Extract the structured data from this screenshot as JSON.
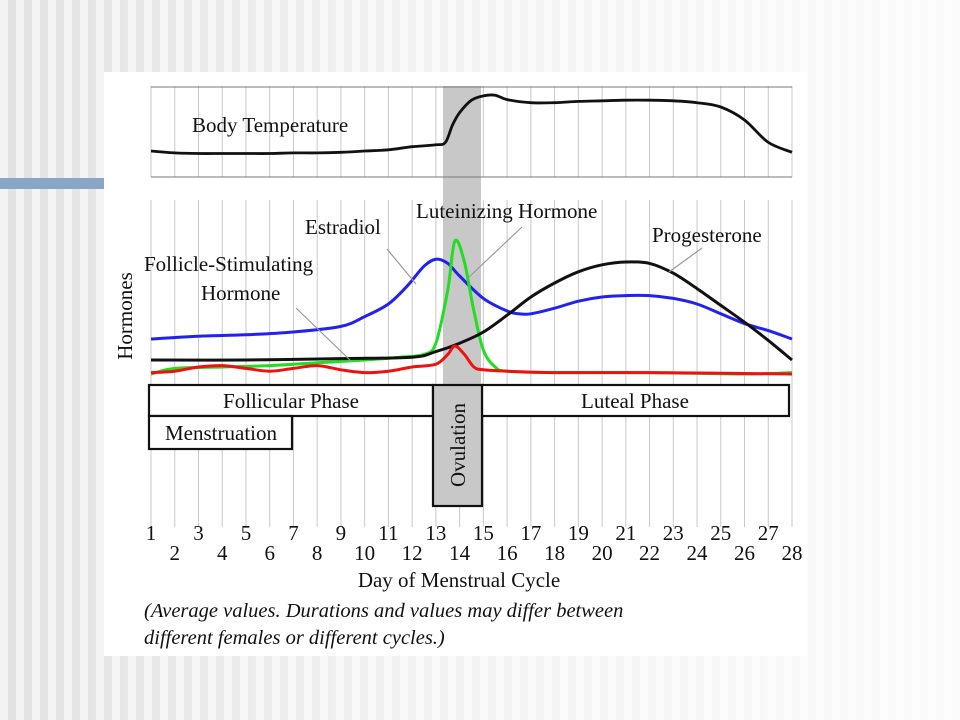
{
  "slide": {
    "accent_color": "#8aa6c6"
  },
  "chart_data": {
    "type": "line",
    "xlabel": "Day of Menstrual Cycle",
    "ylabel": "Hormones",
    "xlim": [
      1,
      28
    ],
    "x_ticks": [
      "1",
      "2",
      "3",
      "4",
      "5",
      "6",
      "7",
      "8",
      "9",
      "10",
      "11",
      "12",
      "13",
      "14",
      "15",
      "16",
      "17",
      "18",
      "19",
      "20",
      "21",
      "22",
      "23",
      "24",
      "25",
      "26",
      "27",
      "28"
    ],
    "grid": "vertical",
    "temperature_panel": {
      "name": "Body Temperature",
      "color": "#111111",
      "points": [
        [
          1,
          0.08
        ],
        [
          2,
          0.05
        ],
        [
          3,
          0.04
        ],
        [
          4,
          0.04
        ],
        [
          5,
          0.04
        ],
        [
          6,
          0.04
        ],
        [
          7,
          0.05
        ],
        [
          8,
          0.05
        ],
        [
          9,
          0.06
        ],
        [
          10,
          0.08
        ],
        [
          11,
          0.1
        ],
        [
          12,
          0.15
        ],
        [
          13,
          0.18
        ],
        [
          13.4,
          0.22
        ],
        [
          13.7,
          0.5
        ],
        [
          14,
          0.7
        ],
        [
          14.5,
          0.9
        ],
        [
          15,
          0.97
        ],
        [
          15.5,
          0.98
        ],
        [
          16,
          0.91
        ],
        [
          17,
          0.86
        ],
        [
          18,
          0.86
        ],
        [
          19,
          0.88
        ],
        [
          20,
          0.89
        ],
        [
          21,
          0.9
        ],
        [
          22,
          0.9
        ],
        [
          23,
          0.89
        ],
        [
          24,
          0.86
        ],
        [
          25,
          0.79
        ],
        [
          26,
          0.58
        ],
        [
          27,
          0.22
        ],
        [
          28,
          0.06
        ]
      ]
    },
    "series": [
      {
        "name": "Estradiol",
        "color": "#2222ee",
        "points": [
          [
            1,
            0.25
          ],
          [
            3,
            0.27
          ],
          [
            5,
            0.28
          ],
          [
            7,
            0.3
          ],
          [
            9,
            0.34
          ],
          [
            10,
            0.41
          ],
          [
            11,
            0.5
          ],
          [
            11.8,
            0.63
          ],
          [
            12.5,
            0.77
          ],
          [
            13,
            0.82
          ],
          [
            13.5,
            0.79
          ],
          [
            14,
            0.7
          ],
          [
            15,
            0.54
          ],
          [
            16,
            0.45
          ],
          [
            16.5,
            0.43
          ],
          [
            17,
            0.43
          ],
          [
            18,
            0.47
          ],
          [
            19,
            0.52
          ],
          [
            20,
            0.55
          ],
          [
            21,
            0.56
          ],
          [
            22,
            0.56
          ],
          [
            23,
            0.54
          ],
          [
            24,
            0.5
          ],
          [
            25,
            0.43
          ],
          [
            26,
            0.36
          ],
          [
            27,
            0.31
          ],
          [
            28,
            0.25
          ]
        ]
      },
      {
        "name": "Luteinizing Hormone",
        "color": "#22dd22",
        "points": [
          [
            1,
            0.0
          ],
          [
            2,
            0.04
          ],
          [
            4,
            0.05
          ],
          [
            6,
            0.06
          ],
          [
            8,
            0.08
          ],
          [
            10,
            0.1
          ],
          [
            11.5,
            0.12
          ],
          [
            12.5,
            0.14
          ],
          [
            13,
            0.22
          ],
          [
            13.5,
            0.6
          ],
          [
            13.8,
            0.95
          ],
          [
            14.2,
            0.8
          ],
          [
            14.6,
            0.45
          ],
          [
            15,
            0.17
          ],
          [
            15.5,
            0.05
          ],
          [
            16,
            0.02
          ],
          [
            18,
            0.01
          ],
          [
            22,
            0.01
          ],
          [
            26,
            0.0
          ],
          [
            28,
            0.01
          ]
        ]
      },
      {
        "name": "Progesterone",
        "color": "#111111",
        "points": [
          [
            1,
            0.1
          ],
          [
            5,
            0.1
          ],
          [
            9,
            0.11
          ],
          [
            12,
            0.12
          ],
          [
            13,
            0.16
          ],
          [
            14,
            0.22
          ],
          [
            15,
            0.3
          ],
          [
            16,
            0.42
          ],
          [
            17,
            0.55
          ],
          [
            18,
            0.65
          ],
          [
            19,
            0.73
          ],
          [
            20,
            0.78
          ],
          [
            21,
            0.8
          ],
          [
            22,
            0.79
          ],
          [
            23,
            0.72
          ],
          [
            24,
            0.61
          ],
          [
            25,
            0.49
          ],
          [
            26,
            0.37
          ],
          [
            27,
            0.24
          ],
          [
            28,
            0.1
          ]
        ]
      },
      {
        "name": "Follicle-Stimulating Hormone",
        "color": "#ee1111",
        "points": [
          [
            1,
            0.01
          ],
          [
            2,
            0.02
          ],
          [
            3,
            0.05
          ],
          [
            4,
            0.06
          ],
          [
            5,
            0.04
          ],
          [
            6,
            0.02
          ],
          [
            7,
            0.04
          ],
          [
            8,
            0.06
          ],
          [
            9,
            0.03
          ],
          [
            10,
            0.01
          ],
          [
            11,
            0.02
          ],
          [
            12,
            0.05
          ],
          [
            13,
            0.07
          ],
          [
            13.5,
            0.14
          ],
          [
            13.8,
            0.2
          ],
          [
            14.2,
            0.14
          ],
          [
            14.6,
            0.05
          ],
          [
            15,
            0.03
          ],
          [
            16,
            0.02
          ],
          [
            18,
            0.01
          ],
          [
            22,
            0.01
          ],
          [
            28,
            0.0
          ]
        ]
      }
    ],
    "annotations": {
      "estradiol": "Estradiol",
      "lh": "Luteinizing  Hormone",
      "progesterone": "Progesterone",
      "fsh_line1": "Follicle-Stimulating",
      "fsh_line2": "Hormone"
    },
    "phases": {
      "follicular": "Follicular Phase",
      "luteal": "Luteal Phase",
      "menstruation": "Menstruation",
      "ovulation": "Ovulation"
    },
    "footnote": {
      "line1": "(Average values. Durations and values may differ between",
      "line2": "different females or different cycles.)"
    }
  }
}
